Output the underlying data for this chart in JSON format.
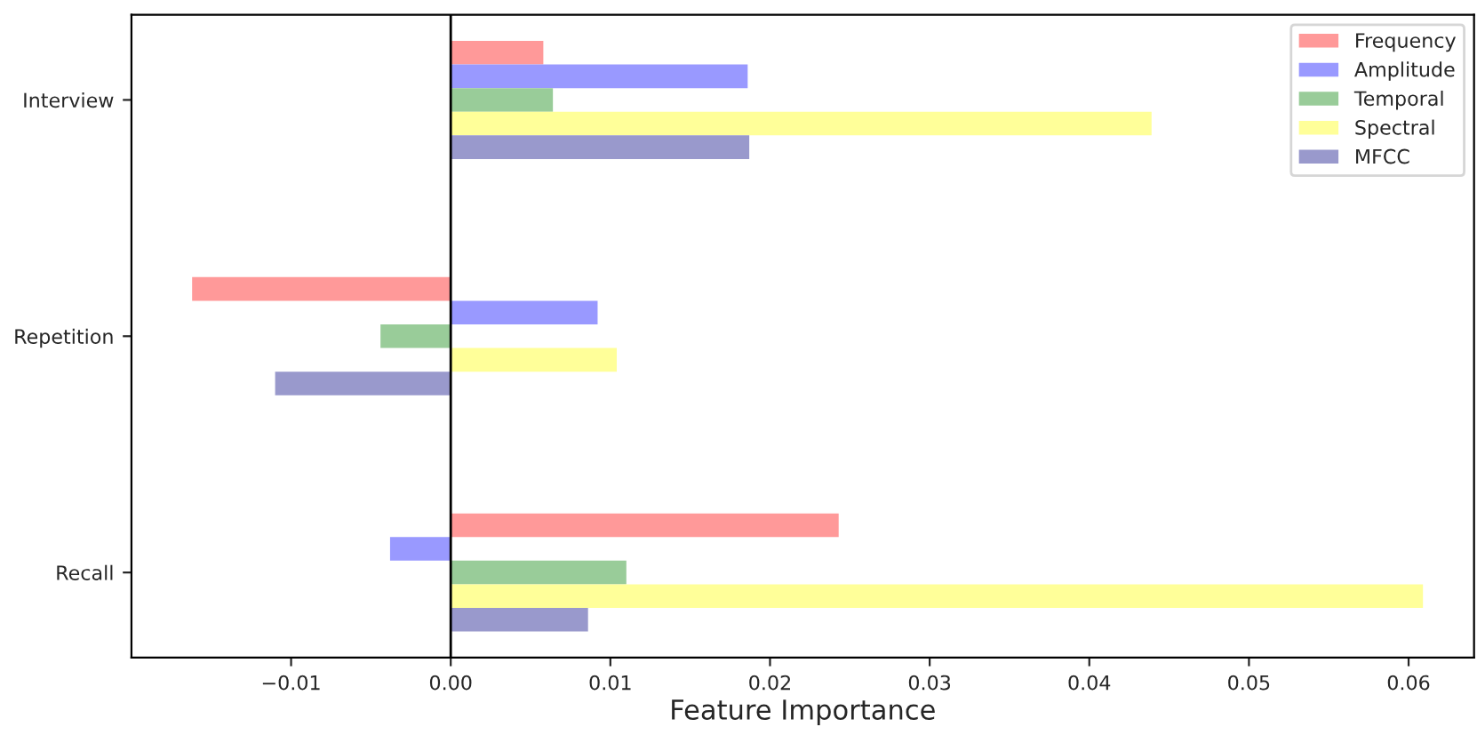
{
  "chart_data": {
    "type": "bar",
    "orientation": "horizontal",
    "xlabel": "Feature Importance",
    "categories": [
      "Interview",
      "Repetition",
      "Recall"
    ],
    "series": [
      {
        "name": "Frequency",
        "color": "#ff9999",
        "values": [
          0.0058,
          -0.0162,
          0.0243
        ]
      },
      {
        "name": "Amplitude",
        "color": "#9999ff",
        "values": [
          0.0186,
          0.0092,
          -0.0038
        ]
      },
      {
        "name": "Temporal",
        "color": "#99cc99",
        "values": [
          0.0064,
          -0.0044,
          0.011
        ]
      },
      {
        "name": "Spectral",
        "color": "#ffff99",
        "values": [
          0.0439,
          0.0104,
          0.0609
        ]
      },
      {
        "name": "MFCC",
        "color": "#9999cc",
        "values": [
          0.0187,
          -0.011,
          0.0086
        ]
      }
    ],
    "xlim": [
      -0.02,
      0.0641
    ],
    "xticks": [
      {
        "value": -0.01,
        "label": "−0.01"
      },
      {
        "value": 0,
        "label": "0.00"
      },
      {
        "value": 0.01,
        "label": "0.01"
      },
      {
        "value": 0.02,
        "label": "0.02"
      },
      {
        "value": 0.03,
        "label": "0.03"
      },
      {
        "value": 0.04,
        "label": "0.04"
      },
      {
        "value": 0.05,
        "label": "0.05"
      },
      {
        "value": 0.06,
        "label": "0.06"
      }
    ],
    "ref_lines": [
      {
        "axis": "x",
        "value": 0,
        "color": "#000000"
      }
    ],
    "legend": "top right",
    "grid": false
  }
}
